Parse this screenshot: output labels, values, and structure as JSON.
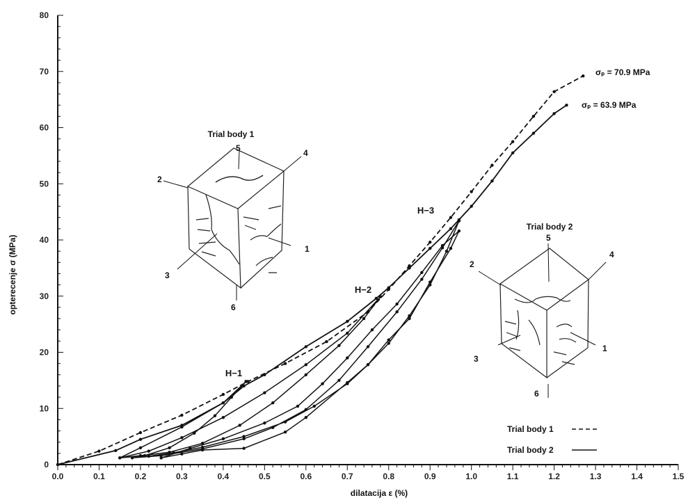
{
  "chart_data": {
    "type": "line",
    "xlabel": "dilatacija ε (%)",
    "ylabel": "opterecenje σ (MPa)",
    "xlim": [
      0,
      1.5
    ],
    "ylim": [
      0,
      80
    ],
    "x_ticks": [
      "0.0",
      "0.1",
      "0.2",
      "0.3",
      "0.4",
      "0.5",
      "0.6",
      "0.7",
      "0.8",
      "0.9",
      "1.0",
      "1.1",
      "1.2",
      "1.3",
      "1.4",
      "1.5"
    ],
    "y_ticks": [
      "0",
      "10",
      "20",
      "30",
      "40",
      "50",
      "60",
      "70",
      "80"
    ],
    "grid": false,
    "legend_position": "bottom-right",
    "series": [
      {
        "name": "Trial body 1",
        "style": "dashed",
        "color": "#111111",
        "x": [
          0.0,
          0.1,
          0.2,
          0.3,
          0.4,
          0.46,
          0.55,
          0.65,
          0.75,
          0.8,
          0.85,
          0.9,
          0.95,
          1.0,
          1.05,
          1.1,
          1.15,
          1.2,
          1.27
        ],
        "y": [
          0.0,
          2.4,
          5.7,
          8.8,
          12.5,
          14.8,
          18.0,
          21.9,
          27.2,
          31.2,
          35.4,
          39.6,
          44.0,
          48.6,
          53.3,
          57.5,
          62.0,
          66.4,
          69.2
        ]
      },
      {
        "name": "Trial body 2",
        "style": "solid",
        "color": "#111111",
        "x": [
          0.0,
          0.14,
          0.2,
          0.3,
          0.4,
          0.45,
          0.5,
          0.6,
          0.7,
          0.77,
          0.8,
          0.85,
          0.9,
          0.95,
          0.97,
          1.0,
          1.05,
          1.1,
          1.15,
          1.2,
          1.23
        ],
        "y": [
          0.0,
          2.5,
          4.5,
          7.0,
          11.0,
          14.0,
          16.0,
          21.0,
          25.5,
          29.6,
          31.5,
          35.0,
          38.5,
          42.0,
          43.6,
          46.0,
          50.5,
          55.5,
          59.0,
          62.5,
          64.0
        ]
      }
    ],
    "loops": [
      {
        "label": "H-1",
        "x": [
          0.455,
          0.42,
          0.38,
          0.33,
          0.27,
          0.21,
          0.15,
          0.2,
          0.3,
          0.4,
          0.455
        ],
        "y": [
          14.8,
          12.0,
          8.7,
          5.6,
          3.0,
          1.6,
          1.2,
          3.0,
          6.7,
          11.0,
          14.8
        ]
      },
      {
        "label": "H-2",
        "x": [
          0.78,
          0.74,
          0.68,
          0.6,
          0.52,
          0.44,
          0.35,
          0.27,
          0.2,
          0.15,
          0.22,
          0.3,
          0.4,
          0.5,
          0.6,
          0.7,
          0.78
        ],
        "y": [
          29.9,
          26.0,
          21.2,
          16.0,
          11.0,
          7.0,
          3.8,
          2.2,
          1.6,
          1.2,
          2.4,
          4.8,
          8.4,
          12.8,
          17.8,
          23.4,
          29.9
        ]
      },
      {
        "label": "H-3",
        "x": [
          0.97,
          0.94,
          0.9,
          0.85,
          0.8,
          0.75,
          0.7,
          0.62,
          0.55,
          0.45,
          0.35,
          0.28,
          0.22,
          0.18,
          0.25,
          0.35,
          0.45,
          0.52,
          0.6,
          0.68,
          0.75,
          0.82,
          0.88,
          0.93,
          0.97
        ],
        "y": [
          43.4,
          38.0,
          32.0,
          26.5,
          21.6,
          17.8,
          14.4,
          10.4,
          7.6,
          5.0,
          3.1,
          2.1,
          1.5,
          1.2,
          1.6,
          2.8,
          4.6,
          6.6,
          9.8,
          15.0,
          21.0,
          27.2,
          33.0,
          38.6,
          43.4
        ]
      },
      {
        "label": "",
        "x": [
          0.25,
          0.3,
          0.35,
          0.45,
          0.55,
          0.6,
          0.7,
          0.75,
          0.8,
          0.85,
          0.9,
          0.95,
          0.97,
          0.93,
          0.88,
          0.82,
          0.76,
          0.7,
          0.64,
          0.58,
          0.5,
          0.4,
          0.32,
          0.25
        ],
        "y": [
          1.2,
          1.9,
          2.6,
          2.9,
          5.8,
          8.4,
          14.6,
          17.8,
          22.2,
          26.0,
          32.5,
          38.5,
          41.6,
          39.0,
          34.2,
          28.6,
          24.0,
          19.0,
          14.4,
          10.4,
          7.4,
          4.6,
          2.9,
          1.2
        ]
      }
    ],
    "annotations": {
      "h1": "H−1",
      "h2": "H−2",
      "h3": "H−3",
      "peak1": "σₚ = 70.9 MPa",
      "peak2": "σₚ = 63.9 MPa"
    },
    "trial_body_1": {
      "title": "Trial body 1",
      "labels": [
        "1",
        "2",
        "3",
        "4",
        "5",
        "6"
      ]
    },
    "trial_body_2": {
      "title": "Trial body 2",
      "labels": [
        "1",
        "2",
        "3",
        "4",
        "5",
        "6"
      ]
    }
  }
}
